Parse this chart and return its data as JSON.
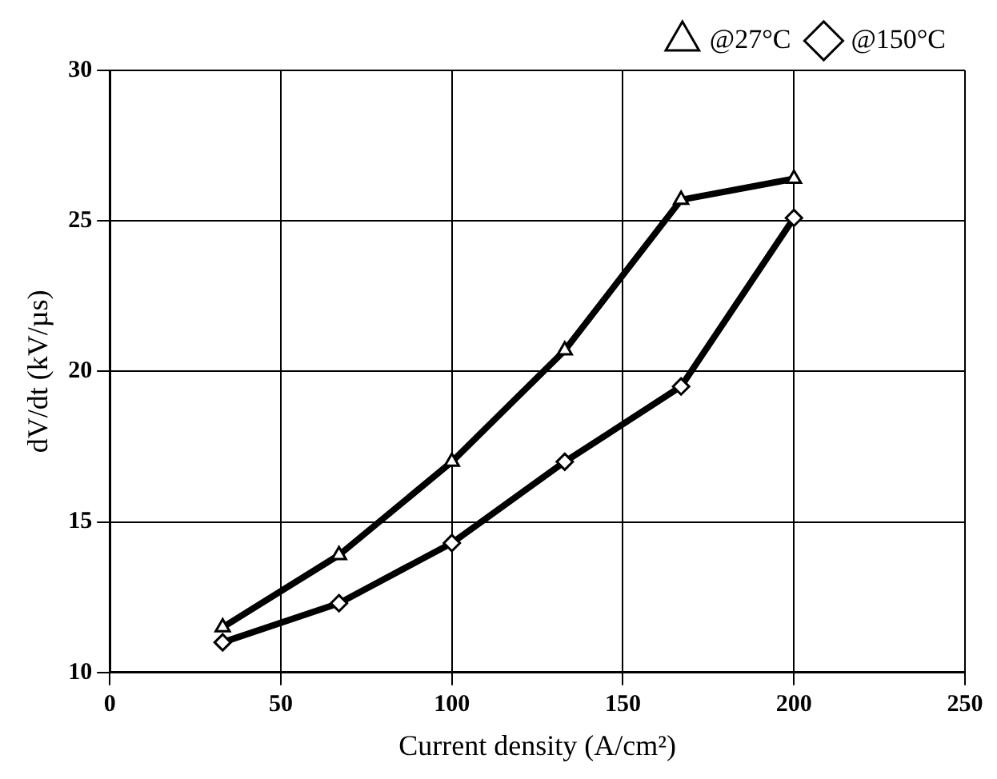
{
  "chart_data": {
    "type": "line",
    "xlabel": "Current density (A/cm²)",
    "ylabel": "dV/dt (kV/µs)",
    "xlim": [
      0,
      250
    ],
    "xticks": [
      0,
      50,
      100,
      150,
      200,
      250
    ],
    "ylim": [
      10,
      30
    ],
    "yticks": [
      10,
      15,
      20,
      25,
      30
    ],
    "grid": true,
    "legend": "top",
    "line_style": "solid",
    "series": [
      {
        "name": "@27°C",
        "color": "#000000",
        "marker": "triangle",
        "x": [
          33,
          67,
          100,
          133,
          167,
          200
        ],
        "values": [
          11.5,
          13.9,
          17.0,
          20.7,
          25.7,
          26.4
        ]
      },
      {
        "name": "@150°C",
        "color": "#000000",
        "marker": "diamond",
        "x": [
          33,
          67,
          100,
          133,
          167,
          200
        ],
        "values": [
          11.0,
          12.3,
          14.3,
          17.0,
          19.5,
          25.1
        ]
      }
    ]
  }
}
